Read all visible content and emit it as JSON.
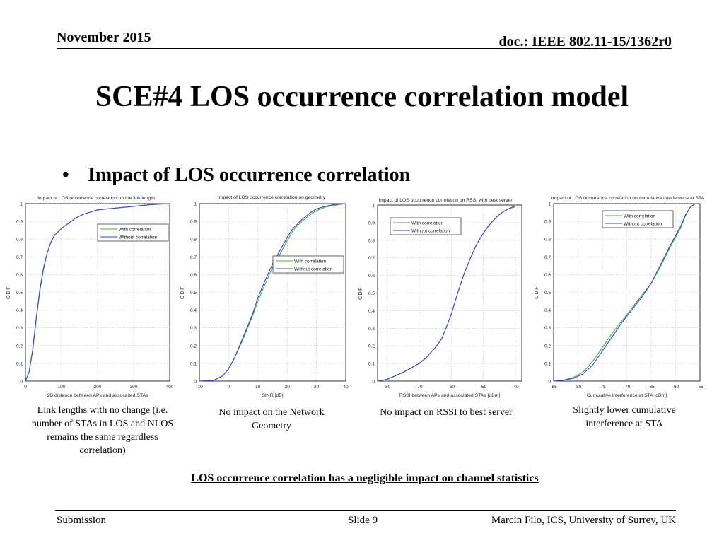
{
  "header": {
    "date": "November 2015",
    "doc": "doc.: IEEE 802.11-15/1362r0"
  },
  "title": "SCE#4 LOS occurrence correlation model",
  "bullet": {
    "symbol": "•",
    "text": "Impact of LOS occurrence correlation"
  },
  "colors": {
    "with": "#3cb43c",
    "without": "#3c3cdc"
  },
  "chart_data": [
    {
      "type": "line",
      "title": "Impact of LOS occurrence correlation on the link length",
      "xlabel": "2D distance between APs and assocaited STAs",
      "ylabel": "CDF",
      "xlim": [
        0,
        400
      ],
      "ylim": [
        0,
        1
      ],
      "xticks": [
        "0",
        "100",
        "200",
        "300",
        "400"
      ],
      "yticks": [
        "0",
        "0.1",
        "0.2",
        "0.3",
        "0.4",
        "0.5",
        "0.6",
        "0.7",
        "0.8",
        "0.9",
        "1"
      ],
      "legend": [
        "With correlation",
        "Without correlation"
      ],
      "legend_position": "right-middle",
      "series": [
        {
          "name": "With correlation",
          "x": [
            0,
            10,
            20,
            30,
            40,
            50,
            60,
            70,
            80,
            100,
            120,
            140,
            160,
            200,
            250,
            300,
            350,
            400
          ],
          "y": [
            0,
            0.05,
            0.18,
            0.36,
            0.52,
            0.64,
            0.72,
            0.78,
            0.82,
            0.86,
            0.89,
            0.92,
            0.94,
            0.965,
            0.975,
            0.985,
            0.995,
            1
          ]
        },
        {
          "name": "Without correlation",
          "x": [
            0,
            10,
            20,
            30,
            40,
            50,
            60,
            70,
            80,
            100,
            120,
            140,
            160,
            200,
            250,
            300,
            350,
            400
          ],
          "y": [
            0,
            0.05,
            0.17,
            0.35,
            0.51,
            0.63,
            0.72,
            0.78,
            0.82,
            0.86,
            0.89,
            0.92,
            0.94,
            0.965,
            0.975,
            0.985,
            0.995,
            1
          ]
        }
      ]
    },
    {
      "type": "line",
      "title": "Impact of LOS occurrence correlation on geometry",
      "xlabel": "SINR [dB]",
      "ylabel": "CDF",
      "xlim": [
        -10,
        40
      ],
      "ylim": [
        0,
        1
      ],
      "xticks": [
        "-10",
        "0",
        "10",
        "20",
        "30",
        "40"
      ],
      "yticks": [
        "0",
        "0.1",
        "0.2",
        "0.3",
        "0.4",
        "0.5",
        "0.6",
        "0.7",
        "0.8",
        "0.9",
        "1"
      ],
      "legend": [
        "With correlation",
        "Without correlation"
      ],
      "legend_position": "right-middle",
      "series": [
        {
          "name": "With correlation",
          "x": [
            -10,
            -5,
            -2,
            0,
            2,
            5,
            8,
            10,
            12,
            15,
            18,
            20,
            22,
            25,
            28,
            30,
            33,
            36,
            40
          ],
          "y": [
            0,
            0.005,
            0.03,
            0.07,
            0.13,
            0.24,
            0.36,
            0.45,
            0.53,
            0.64,
            0.73,
            0.79,
            0.85,
            0.9,
            0.94,
            0.96,
            0.98,
            0.99,
            1
          ]
        },
        {
          "name": "Without correlation",
          "x": [
            -10,
            -5,
            -2,
            0,
            2,
            5,
            8,
            10,
            12,
            15,
            18,
            20,
            22,
            25,
            28,
            30,
            33,
            36,
            40
          ],
          "y": [
            0,
            0.005,
            0.03,
            0.07,
            0.13,
            0.25,
            0.37,
            0.47,
            0.55,
            0.66,
            0.75,
            0.81,
            0.86,
            0.91,
            0.95,
            0.97,
            0.985,
            0.995,
            1
          ]
        }
      ]
    },
    {
      "type": "line",
      "title": "Impact of LOS occurrence correlation on RSSI with best server",
      "xlabel": "RSSI between APs and associated STAs [dBm]",
      "ylabel": "CDF",
      "xlim": [
        -83,
        -38
      ],
      "ylim": [
        0,
        1
      ],
      "xticks": [
        "-80",
        "-70",
        "-60",
        "-50",
        "-40"
      ],
      "xtick_values": [
        -80,
        -70,
        -60,
        -50,
        -40
      ],
      "yticks": [
        "0",
        "0.1",
        "0.2",
        "0.3",
        "0.4",
        "0.5",
        "0.6",
        "0.7",
        "0.8",
        "0.9",
        "1"
      ],
      "legend": [
        "With correlation",
        "Without correlation"
      ],
      "legend_position": "top-left",
      "series": [
        {
          "name": "With correlation",
          "x": [
            -83,
            -80,
            -75,
            -70,
            -68,
            -65,
            -63,
            -61,
            -60,
            -58,
            -56,
            -54,
            -52,
            -50,
            -48,
            -46,
            -44,
            -42,
            -40
          ],
          "y": [
            0,
            0.01,
            0.05,
            0.1,
            0.13,
            0.19,
            0.24,
            0.33,
            0.38,
            0.5,
            0.61,
            0.7,
            0.78,
            0.84,
            0.89,
            0.93,
            0.96,
            0.98,
            0.99
          ]
        },
        {
          "name": "Without correlation",
          "x": [
            -83,
            -80,
            -75,
            -70,
            -68,
            -65,
            -63,
            -61,
            -60,
            -58,
            -56,
            -54,
            -52,
            -50,
            -48,
            -46,
            -44,
            -42,
            -40
          ],
          "y": [
            0,
            0.01,
            0.05,
            0.1,
            0.13,
            0.19,
            0.24,
            0.33,
            0.38,
            0.5,
            0.61,
            0.7,
            0.78,
            0.84,
            0.89,
            0.93,
            0.96,
            0.98,
            0.995
          ]
        }
      ]
    },
    {
      "type": "line",
      "title": "Impact of LOS occurrence correlation on cumulative interference at STA",
      "xlabel": "Cumulative interference at STA [dBm]",
      "ylabel": "CDF",
      "xlim": [
        -85,
        -55
      ],
      "ylim": [
        0,
        1
      ],
      "xticks": [
        "-85",
        "-80",
        "-75",
        "-70",
        "-65",
        "-60",
        "-55"
      ],
      "yticks": [
        "0",
        "0.1",
        "0.2",
        "0.3",
        "0.4",
        "0.5",
        "0.6",
        "0.7",
        "0.8",
        "0.9",
        "1"
      ],
      "legend": [
        "With correlation",
        "Without correlation"
      ],
      "legend_position": "top-right",
      "series": [
        {
          "name": "With correlation",
          "x": [
            -85,
            -83,
            -81,
            -79,
            -77,
            -75,
            -73,
            -71,
            -69,
            -67,
            -65,
            -63,
            -61,
            -59,
            -58,
            -57,
            -56
          ],
          "y": [
            0,
            0.005,
            0.02,
            0.05,
            0.11,
            0.19,
            0.27,
            0.34,
            0.41,
            0.48,
            0.55,
            0.65,
            0.76,
            0.86,
            0.93,
            0.98,
            1
          ]
        },
        {
          "name": "Without correlation",
          "x": [
            -85,
            -83,
            -81,
            -79,
            -77,
            -75,
            -73,
            -71,
            -69,
            -67,
            -65,
            -63,
            -61,
            -59,
            -58,
            -57,
            -56
          ],
          "y": [
            0,
            0.005,
            0.015,
            0.04,
            0.09,
            0.17,
            0.25,
            0.33,
            0.4,
            0.47,
            0.55,
            0.66,
            0.77,
            0.87,
            0.935,
            0.98,
            1
          ]
        }
      ]
    }
  ],
  "captions": [
    "Link lengths with no change (i.e. number of STAs in LOS and NLOS remains the same regardless correlation)",
    "No impact on the Network Geometry",
    "No impact on RSSI to best server",
    "Slightly lower cumulative interference at STA"
  ],
  "conclusion": "LOS occurrence correlation has a negligible impact on channel statistics",
  "footer": {
    "left": "Submission",
    "center": "Slide 9",
    "right": "Marcin Filo, ICS, University of Surrey, UK"
  }
}
